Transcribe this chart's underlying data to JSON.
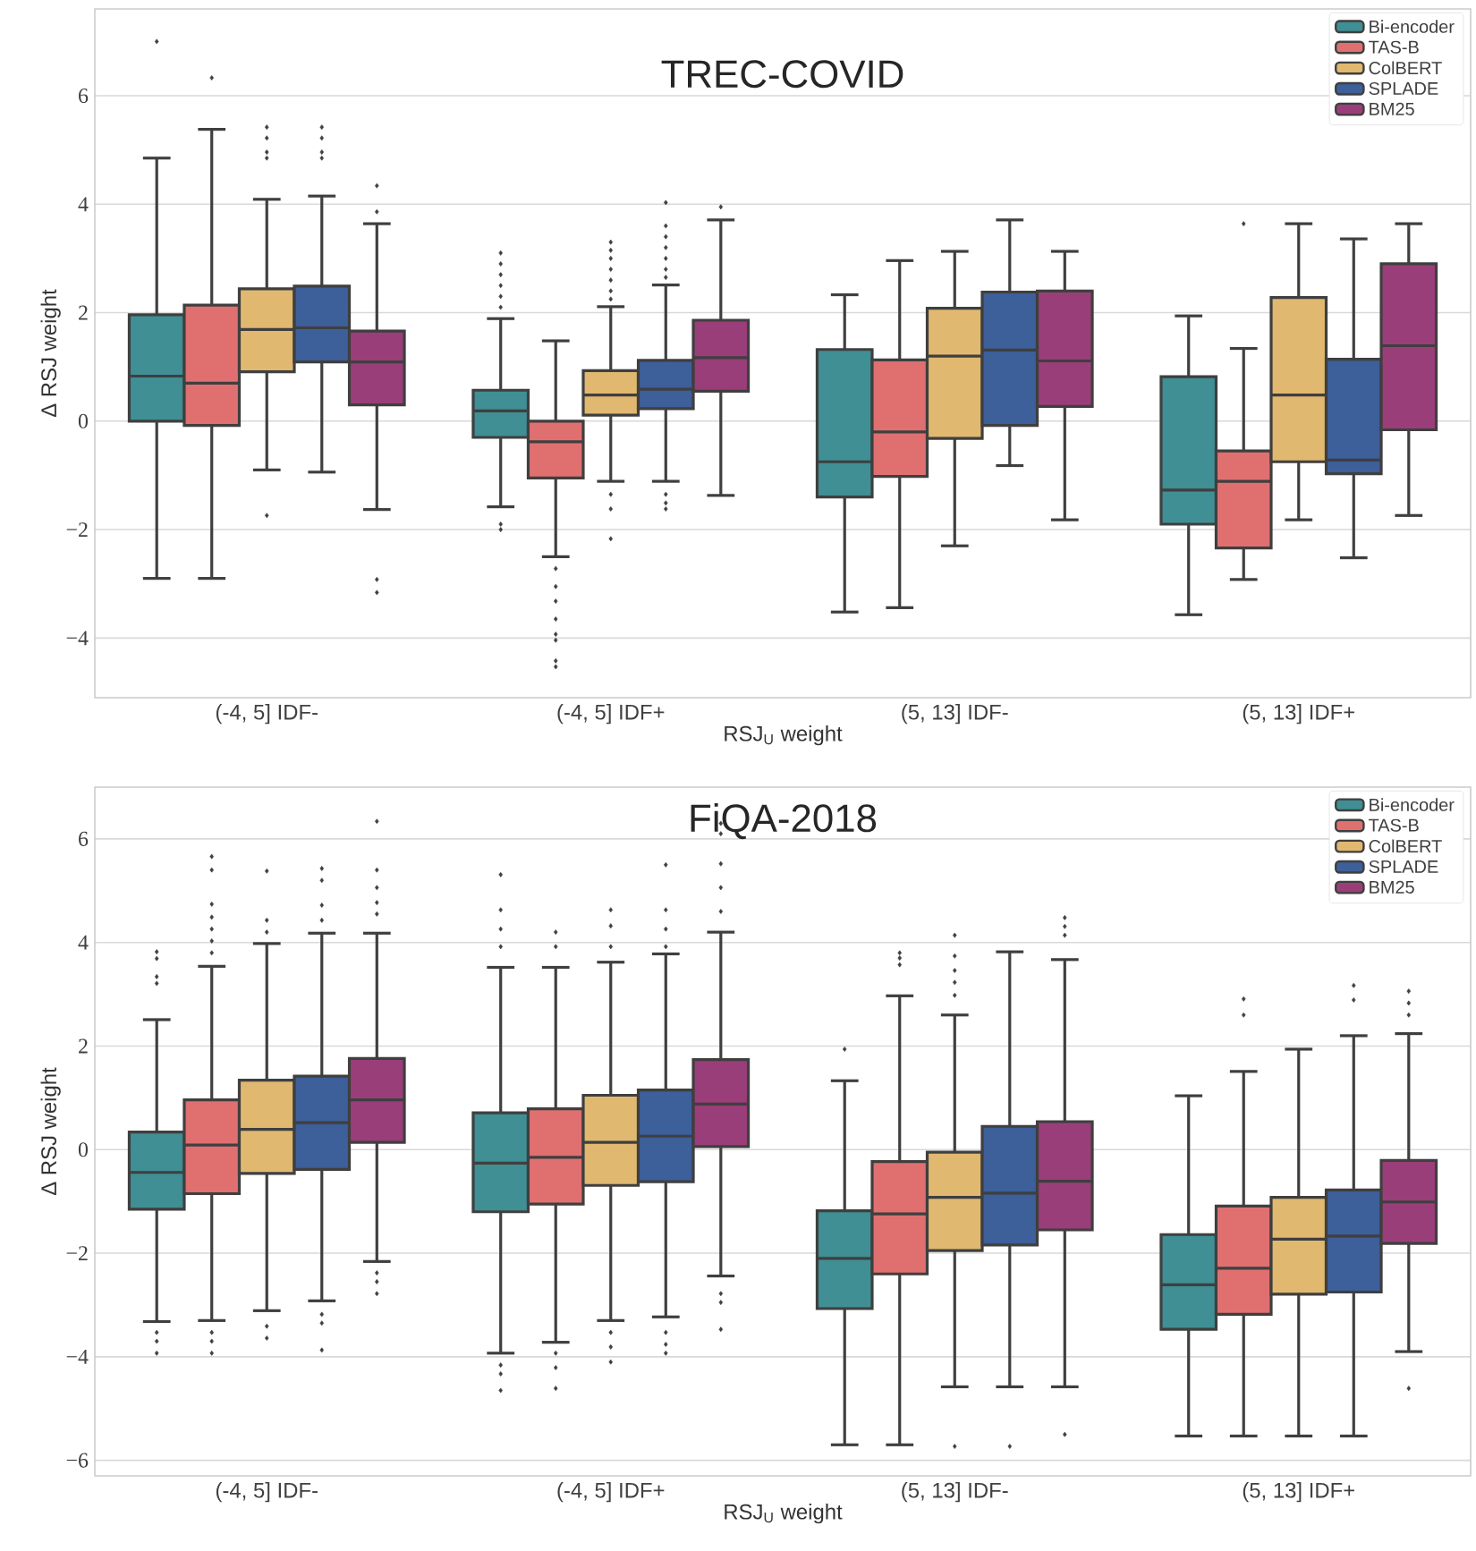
{
  "chart_data": [
    {
      "type": "box",
      "title": "TREC-COVID",
      "xlabel": "RSJ$_{U}$ weight",
      "ylabel": "Δ RSJ weight",
      "categories": [
        "(-4, 5] IDF-",
        "(-4, 5] IDF+",
        "(5, 13] IDF-",
        "(5, 13] IDF+"
      ],
      "ylim": [
        -5.1,
        7.6
      ],
      "yticks": [
        {
          "value": -4,
          "label": "−4"
        },
        {
          "value": -2,
          "label": "−2"
        },
        0,
        2,
        4,
        6
      ],
      "grid": "y",
      "legend": "top right",
      "marker": "diamond",
      "series": [
        {
          "name": "Bi-encoder",
          "color": "#3f8f94",
          "boxes": [
            {
              "low": -2.9,
              "q1": 0.0,
              "median": 0.83,
              "q3": 1.96,
              "high": 4.85,
              "outliers": [
                7.0
              ]
            },
            {
              "low": -1.58,
              "q1": -0.3,
              "median": 0.19,
              "q3": 0.57,
              "high": 1.89,
              "outliers": [
                3.1,
                2.9,
                2.7,
                2.5,
                2.3,
                2.1,
                -1.9,
                -2.0
              ]
            },
            {
              "low": -3.52,
              "q1": -1.4,
              "median": -0.75,
              "q3": 1.32,
              "high": 2.33
            },
            {
              "low": -3.57,
              "q1": -1.9,
              "median": -1.27,
              "q3": 0.82,
              "high": 1.94
            }
          ]
        },
        {
          "name": "TAS-B",
          "color": "#e07070",
          "boxes": [
            {
              "low": -2.9,
              "q1": -0.08,
              "median": 0.7,
              "q3": 2.14,
              "high": 5.38,
              "outliers": [
                6.33
              ]
            },
            {
              "low": -2.5,
              "q1": -1.05,
              "median": -0.38,
              "q3": 0.0,
              "high": 1.48,
              "outliers": [
                -2.72,
                -3.05,
                -3.32,
                -3.65,
                -3.93,
                -4.04,
                -4.42,
                -4.53
              ]
            },
            {
              "low": -3.44,
              "q1": -1.02,
              "median": -0.2,
              "q3": 1.13,
              "high": 2.96
            },
            {
              "low": -2.92,
              "q1": -2.34,
              "median": -1.11,
              "q3": -0.55,
              "high": 1.34,
              "outliers": [
                3.64
              ]
            }
          ]
        },
        {
          "name": "ColBERT",
          "color": "#e0b870",
          "boxes": [
            {
              "low": -0.9,
              "q1": 0.91,
              "median": 1.69,
              "q3": 2.44,
              "high": 4.09,
              "outliers": [
                5.42,
                5.22,
                4.96,
                4.85,
                -1.74
              ]
            },
            {
              "low": -1.11,
              "q1": 0.11,
              "median": 0.48,
              "q3": 0.93,
              "high": 2.11,
              "outliers": [
                3.3,
                3.15,
                3.0,
                2.8,
                2.6,
                2.4,
                2.25,
                -1.35,
                -1.62,
                -2.17
              ]
            },
            {
              "low": -2.3,
              "q1": -0.32,
              "median": 1.2,
              "q3": 2.08,
              "high": 3.13
            },
            {
              "low": -1.82,
              "q1": -0.75,
              "median": 0.48,
              "q3": 2.28,
              "high": 3.64
            }
          ]
        },
        {
          "name": "SPLADE",
          "color": "#3d5f9a",
          "boxes": [
            {
              "low": -0.94,
              "q1": 1.09,
              "median": 1.72,
              "q3": 2.49,
              "high": 4.15,
              "outliers": [
                5.42,
                5.22,
                4.96,
                4.85
              ]
            },
            {
              "low": -1.11,
              "q1": 0.23,
              "median": 0.59,
              "q3": 1.12,
              "high": 2.51,
              "outliers": [
                4.03,
                3.6,
                3.4,
                3.2,
                3.0,
                2.8,
                2.65,
                -1.35,
                -1.51,
                -1.62
              ]
            },
            {
              "low": -0.82,
              "q1": -0.08,
              "median": 1.31,
              "q3": 2.38,
              "high": 3.71
            },
            {
              "low": -2.52,
              "q1": -0.97,
              "median": -0.72,
              "q3": 1.14,
              "high": 3.36
            }
          ]
        },
        {
          "name": "BM25",
          "color": "#9a3e7a",
          "boxes": [
            {
              "low": -1.63,
              "q1": 0.3,
              "median": 1.09,
              "q3": 1.66,
              "high": 3.64,
              "outliers": [
                4.34,
                3.86,
                -2.92,
                -3.16
              ]
            },
            {
              "low": -1.37,
              "q1": 0.55,
              "median": 1.17,
              "q3": 1.86,
              "high": 3.71,
              "outliers": [
                3.95
              ]
            },
            {
              "low": -1.82,
              "q1": 0.27,
              "median": 1.11,
              "q3": 2.4,
              "high": 3.13
            },
            {
              "low": -1.74,
              "q1": -0.16,
              "median": 1.39,
              "q3": 2.9,
              "high": 3.64
            }
          ]
        }
      ]
    },
    {
      "type": "box",
      "title": "FiQA-2018",
      "xlabel": "RSJ$_{U}$ weight",
      "ylabel": "Δ RSJ weight",
      "categories": [
        "(-4, 5] IDF-",
        "(-4, 5] IDF+",
        "(5, 13] IDF-",
        "(5, 13] IDF+"
      ],
      "ylim": [
        -6.3,
        7.0
      ],
      "yticks": [
        {
          "value": -6,
          "label": "−6"
        },
        {
          "value": -4,
          "label": "−4"
        },
        {
          "value": -2,
          "label": "−2"
        },
        0,
        2,
        4,
        6
      ],
      "grid": "y",
      "legend": "top right",
      "marker": "diamond",
      "series": [
        {
          "name": "Bi-encoder",
          "color": "#3f8f94",
          "boxes": [
            {
              "low": -3.32,
              "q1": -1.15,
              "median": -0.44,
              "q3": 0.34,
              "high": 2.51,
              "outliers": [
                3.82,
                3.69,
                3.34,
                3.21,
                -3.53,
                -3.7,
                -3.93
              ]
            },
            {
              "low": -3.93,
              "q1": -1.2,
              "median": -0.26,
              "q3": 0.71,
              "high": 3.52,
              "outliers": [
                5.31,
                4.63,
                4.26,
                3.92,
                -4.16,
                -4.33,
                -4.65
              ]
            },
            {
              "low": -5.7,
              "q1": -3.07,
              "median": -2.1,
              "q3": -1.18,
              "high": 1.33,
              "outliers": [
                1.94
              ]
            },
            {
              "low": -5.53,
              "q1": -3.47,
              "median": -2.61,
              "q3": -1.64,
              "high": 1.04
            }
          ]
        },
        {
          "name": "TAS-B",
          "color": "#e07070",
          "boxes": [
            {
              "low": -3.3,
              "q1": -0.85,
              "median": 0.09,
              "q3": 0.96,
              "high": 3.54,
              "outliers": [
                5.66,
                5.4,
                4.74,
                4.49,
                4.26,
                4.03,
                3.8,
                -3.53,
                -3.7,
                -3.93
              ]
            },
            {
              "low": -3.72,
              "q1": -1.05,
              "median": -0.15,
              "q3": 0.79,
              "high": 3.52,
              "outliers": [
                4.2,
                3.92,
                -3.93,
                -4.21,
                -4.61
              ]
            },
            {
              "low": -5.7,
              "q1": -2.4,
              "median": -1.24,
              "q3": -0.23,
              "high": 2.97,
              "outliers": [
                3.8,
                3.7,
                3.57
              ]
            },
            {
              "low": -5.53,
              "q1": -3.18,
              "median": -2.29,
              "q3": -1.09,
              "high": 1.51,
              "outliers": [
                2.91,
                2.6
              ]
            }
          ]
        },
        {
          "name": "ColBERT",
          "color": "#e0b870",
          "boxes": [
            {
              "low": -3.11,
              "q1": -0.46,
              "median": 0.39,
              "q3": 1.34,
              "high": 3.98,
              "outliers": [
                5.38,
                4.43,
                4.2,
                -3.41,
                -3.64
              ]
            },
            {
              "low": -3.3,
              "q1": -0.69,
              "median": 0.14,
              "q3": 1.05,
              "high": 3.62,
              "outliers": [
                4.63,
                4.32,
                3.92,
                -3.53,
                -3.81,
                -4.1
              ]
            },
            {
              "low": -4.58,
              "q1": -1.95,
              "median": -0.92,
              "q3": -0.05,
              "high": 2.6,
              "outliers": [
                4.14,
                3.74,
                3.46,
                3.23,
                2.98,
                -5.73
              ]
            },
            {
              "low": -5.53,
              "q1": -2.79,
              "median": -1.73,
              "q3": -0.92,
              "high": 1.94
            }
          ]
        },
        {
          "name": "SPLADE",
          "color": "#3d5f9a",
          "boxes": [
            {
              "low": -2.92,
              "q1": -0.38,
              "median": 0.52,
              "q3": 1.42,
              "high": 4.18,
              "outliers": [
                5.43,
                5.2,
                4.72,
                4.43,
                -3.18,
                -3.35,
                -3.87
              ]
            },
            {
              "low": -3.23,
              "q1": -0.62,
              "median": 0.26,
              "q3": 1.15,
              "high": 3.78,
              "outliers": [
                5.5,
                4.63,
                4.26,
                3.92,
                -3.53,
                -3.76,
                -3.93
              ]
            },
            {
              "low": -4.58,
              "q1": -1.84,
              "median": -0.84,
              "q3": 0.45,
              "high": 3.82,
              "outliers": [
                -5.73
              ]
            },
            {
              "low": -5.53,
              "q1": -2.75,
              "median": -1.67,
              "q3": -0.78,
              "high": 2.2,
              "outliers": [
                3.17,
                2.89
              ]
            }
          ]
        },
        {
          "name": "BM25",
          "color": "#9a3e7a",
          "boxes": [
            {
              "low": -2.16,
              "q1": 0.14,
              "median": 0.96,
              "q3": 1.76,
              "high": 4.18,
              "outliers": [
                6.34,
                5.4,
                5.06,
                4.77,
                4.55,
                -2.38,
                -2.55,
                -2.78
              ]
            },
            {
              "low": -2.44,
              "q1": 0.06,
              "median": 0.88,
              "q3": 1.74,
              "high": 4.2,
              "outliers": [
                6.3,
                6.1,
                5.52,
                5.06,
                4.6,
                -2.78,
                -2.95,
                -3.47
              ]
            },
            {
              "low": -4.58,
              "q1": -1.55,
              "median": -0.61,
              "q3": 0.54,
              "high": 3.67,
              "outliers": [
                4.48,
                4.31,
                4.14,
                -5.5
              ]
            },
            {
              "low": -3.9,
              "q1": -1.81,
              "median": -1.01,
              "q3": -0.21,
              "high": 2.24,
              "outliers": [
                3.06,
                2.83,
                2.6,
                -4.61
              ]
            }
          ]
        }
      ]
    }
  ]
}
